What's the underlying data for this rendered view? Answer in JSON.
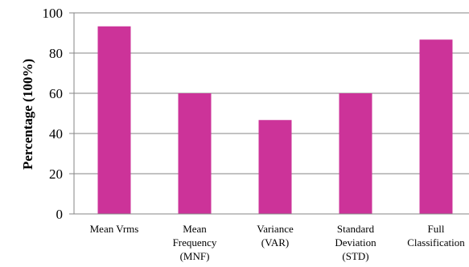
{
  "chart_data": {
    "type": "bar",
    "categories": [
      [
        "Mean Vrms"
      ],
      [
        "Mean",
        "Frequency",
        "(MNF)"
      ],
      [
        "Variance",
        "(VAR)"
      ],
      [
        "Standard",
        "Deviation",
        "(STD)"
      ],
      [
        "Full",
        "Classification"
      ]
    ],
    "values": [
      93.3,
      60,
      46.7,
      60,
      86.7
    ],
    "title": "",
    "xlabel": "",
    "ylabel": "Percentage (100%)",
    "ylim": [
      0,
      100
    ],
    "yticks": [
      0,
      20,
      40,
      60,
      80,
      100
    ],
    "grid": "horizontal",
    "colors": {
      "bar": "#cc3399",
      "grid": "#868686",
      "axis": "#868686"
    }
  }
}
